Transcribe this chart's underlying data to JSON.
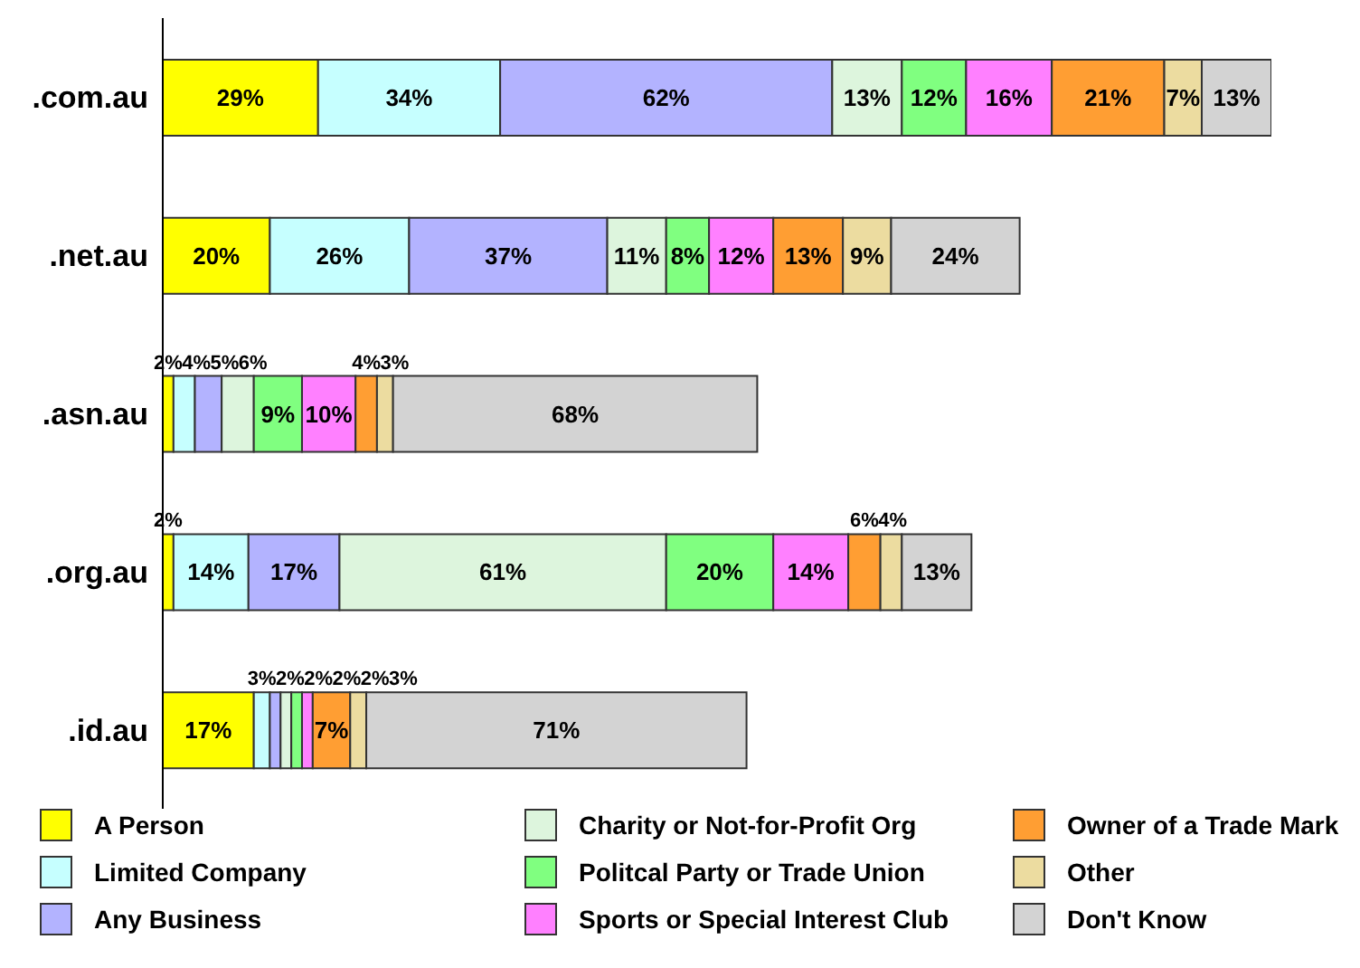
{
  "chart_data": {
    "type": "bar",
    "orientation": "horizontal",
    "stacked": true,
    "legend": "bottom",
    "tick_labels": "y",
    "categories": [
      ".com.au",
      ".net.au",
      ".asn.au",
      ".org.au",
      ".id.au"
    ],
    "series": [
      {
        "name": "A Person",
        "color": "#ffff00",
        "values": [
          29,
          20,
          2,
          2,
          17
        ],
        "value_labels": [
          "29%",
          "20%",
          "2%",
          "2%",
          "17%"
        ]
      },
      {
        "name": "Limited Company",
        "color": "#c6ffff",
        "values": [
          34,
          26,
          4,
          14,
          3
        ],
        "value_labels": [
          "34%",
          "26%",
          "4%",
          "14%",
          "3%"
        ]
      },
      {
        "name": "Any Business",
        "color": "#b3b3ff",
        "values": [
          62,
          37,
          5,
          17,
          2
        ],
        "value_labels": [
          "62%",
          "37%",
          "5%",
          "17%",
          "2%"
        ]
      },
      {
        "name": "Charity or Not-for-Profit Org",
        "color": "#ddf5dd",
        "values": [
          13,
          11,
          6,
          61,
          2
        ],
        "value_labels": [
          "13%",
          "11%",
          "6%",
          "61%",
          "2%"
        ]
      },
      {
        "name": "Politcal Party or Trade Union",
        "color": "#80ff80",
        "values": [
          12,
          8,
          9,
          20,
          2
        ],
        "value_labels": [
          "12%",
          "8%",
          "9%",
          "20%",
          "2%"
        ]
      },
      {
        "name": "Sports or Special Interest Club",
        "color": "#ff80ff",
        "values": [
          16,
          12,
          10,
          14,
          2
        ],
        "value_labels": [
          "16%",
          "12%",
          "10%",
          "14%",
          "2%"
        ]
      },
      {
        "name": "Owner of a Trade Mark",
        "color": "#ff9e33",
        "values": [
          21,
          13,
          4,
          6,
          7
        ],
        "value_labels": [
          "21%",
          "13%",
          "4%",
          "6%",
          "7%"
        ]
      },
      {
        "name": "Other",
        "color": "#ecdca0",
        "values": [
          7,
          9,
          3,
          4,
          3
        ],
        "value_labels": [
          "7%",
          "9%",
          "3%",
          "4%",
          "3%"
        ]
      },
      {
        "name": "Don't Know",
        "color": "#d3d3d3",
        "values": [
          13,
          24,
          68,
          13,
          71
        ],
        "value_labels": [
          "13%",
          "24%",
          "68%",
          "13%",
          "71%"
        ]
      }
    ]
  }
}
